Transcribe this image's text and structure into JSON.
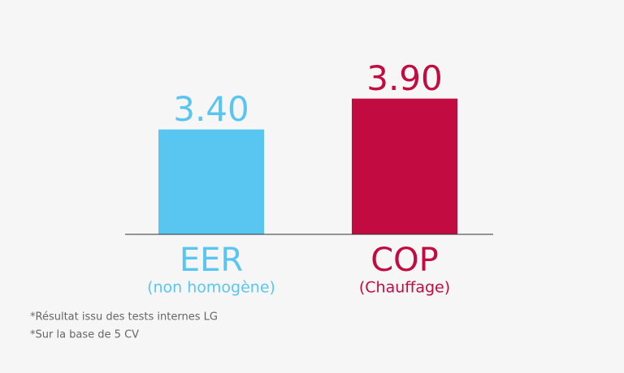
{
  "chart_data": {
    "type": "bar",
    "categories": [
      "EER",
      "COP"
    ],
    "category_sublabels": [
      "(non homogène)",
      "(Chauffage)"
    ],
    "values": [
      3.4,
      3.9
    ],
    "value_labels": [
      "3.40",
      "3.90"
    ],
    "colors": [
      "#59c6f1",
      "#c20b40"
    ],
    "ylim": [
      1.7,
      4.0
    ],
    "notes": [
      "*Résultat issu des tests internes LG",
      "*Sur la base de 5 CV"
    ]
  }
}
